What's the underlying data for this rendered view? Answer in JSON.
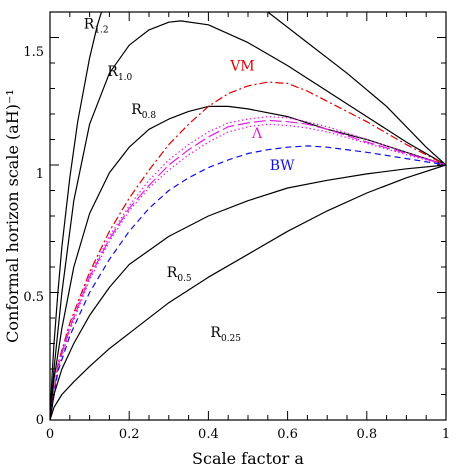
{
  "chart_data": {
    "type": "line",
    "xlabel": "Scale factor a",
    "ylabel": "Conformal horizon scale (aH)⁻¹",
    "xlim": [
      0,
      1
    ],
    "ylim": [
      0,
      1.6
    ],
    "x_ticks": [
      "0",
      "0.2",
      "0.4",
      "0.6",
      "0.8",
      "1"
    ],
    "y_ticks": [
      "0",
      "0.5",
      "1",
      "1.5"
    ],
    "grid": false,
    "series": [
      {
        "name": "R",
        "sub": "1.2",
        "color": "#000000",
        "style": "solid",
        "points": [
          [
            0,
            0
          ],
          [
            0.005,
            0.17
          ],
          [
            0.01,
            0.3
          ],
          [
            0.02,
            0.5
          ],
          [
            0.03,
            0.68
          ],
          [
            0.05,
            0.95
          ],
          [
            0.07,
            1.17
          ],
          [
            0.1,
            1.42
          ],
          [
            0.12,
            1.55
          ],
          [
            0.13,
            1.6
          ]
        ]
      },
      {
        "name": "R",
        "sub": "1.0",
        "color": "#000000",
        "style": "solid",
        "points": [
          [
            0,
            0
          ],
          [
            0.01,
            0.2
          ],
          [
            0.03,
            0.5
          ],
          [
            0.06,
            0.86
          ],
          [
            0.1,
            1.16
          ],
          [
            0.15,
            1.36
          ],
          [
            0.2,
            1.47
          ],
          [
            0.25,
            1.53
          ],
          [
            0.3,
            1.56
          ],
          [
            0.33,
            1.565
          ],
          [
            0.4,
            1.55
          ],
          [
            0.5,
            1.48
          ],
          [
            0.6,
            1.39
          ],
          [
            0.7,
            1.29
          ],
          [
            0.8,
            1.19
          ],
          [
            0.9,
            1.09
          ],
          [
            1.0,
            1.0
          ]
        ]
      },
      {
        "name": "",
        "sub": "",
        "color": "#000000",
        "style": "solid",
        "points": [
          [
            0.55,
            1.6
          ],
          [
            0.65,
            1.48
          ],
          [
            0.75,
            1.36
          ],
          [
            0.85,
            1.23
          ],
          [
            0.95,
            1.07
          ],
          [
            1.0,
            1.0
          ]
        ]
      },
      {
        "name": "R",
        "sub": "0.8",
        "color": "#000000",
        "style": "solid",
        "points": [
          [
            0,
            0
          ],
          [
            0.01,
            0.16
          ],
          [
            0.03,
            0.36
          ],
          [
            0.06,
            0.6
          ],
          [
            0.1,
            0.81
          ],
          [
            0.15,
            0.97
          ],
          [
            0.2,
            1.07
          ],
          [
            0.25,
            1.14
          ],
          [
            0.3,
            1.18
          ],
          [
            0.35,
            1.21
          ],
          [
            0.4,
            1.23
          ],
          [
            0.45,
            1.23
          ],
          [
            0.5,
            1.22
          ],
          [
            0.6,
            1.19
          ],
          [
            0.7,
            1.14
          ],
          [
            0.8,
            1.1
          ],
          [
            0.9,
            1.05
          ],
          [
            1.0,
            1.0
          ]
        ]
      },
      {
        "name": "VM",
        "sub": "",
        "color": "#e00000",
        "style": "dashdot",
        "points": [
          [
            0,
            0
          ],
          [
            0.02,
            0.22
          ],
          [
            0.05,
            0.38
          ],
          [
            0.1,
            0.58
          ],
          [
            0.15,
            0.74
          ],
          [
            0.2,
            0.87
          ],
          [
            0.25,
            0.98
          ],
          [
            0.3,
            1.08
          ],
          [
            0.35,
            1.16
          ],
          [
            0.4,
            1.23
          ],
          [
            0.45,
            1.28
          ],
          [
            0.5,
            1.31
          ],
          [
            0.55,
            1.325
          ],
          [
            0.6,
            1.32
          ],
          [
            0.65,
            1.29
          ],
          [
            0.7,
            1.25
          ],
          [
            0.8,
            1.17
          ],
          [
            0.9,
            1.08
          ],
          [
            1.0,
            1.0
          ]
        ]
      },
      {
        "name": "Λ",
        "sub": "",
        "color": "#e020e0",
        "style": "longdash",
        "points": [
          [
            0,
            0
          ],
          [
            0.02,
            0.21
          ],
          [
            0.05,
            0.36
          ],
          [
            0.1,
            0.56
          ],
          [
            0.15,
            0.71
          ],
          [
            0.2,
            0.83
          ],
          [
            0.25,
            0.92
          ],
          [
            0.3,
            1.0
          ],
          [
            0.35,
            1.06
          ],
          [
            0.4,
            1.11
          ],
          [
            0.45,
            1.15
          ],
          [
            0.5,
            1.165
          ],
          [
            0.55,
            1.175
          ],
          [
            0.6,
            1.17
          ],
          [
            0.65,
            1.16
          ],
          [
            0.7,
            1.14
          ],
          [
            0.8,
            1.09
          ],
          [
            0.9,
            1.045
          ],
          [
            1.0,
            1.0
          ]
        ]
      },
      {
        "name": "",
        "sub": "",
        "color": "#e020e0",
        "style": "dotted",
        "points": [
          [
            0,
            0
          ],
          [
            0.02,
            0.22
          ],
          [
            0.05,
            0.37
          ],
          [
            0.1,
            0.57
          ],
          [
            0.15,
            0.72
          ],
          [
            0.2,
            0.84
          ],
          [
            0.25,
            0.94
          ],
          [
            0.3,
            1.02
          ],
          [
            0.35,
            1.08
          ],
          [
            0.4,
            1.13
          ],
          [
            0.45,
            1.165
          ],
          [
            0.5,
            1.18
          ],
          [
            0.55,
            1.19
          ],
          [
            0.6,
            1.185
          ],
          [
            0.65,
            1.17
          ],
          [
            0.7,
            1.15
          ],
          [
            0.8,
            1.1
          ],
          [
            0.9,
            1.05
          ],
          [
            1.0,
            1.0
          ]
        ]
      },
      {
        "name": "",
        "sub": "",
        "color": "#e020e0",
        "style": "dotted",
        "points": [
          [
            0,
            0
          ],
          [
            0.02,
            0.2
          ],
          [
            0.05,
            0.35
          ],
          [
            0.1,
            0.55
          ],
          [
            0.15,
            0.7
          ],
          [
            0.2,
            0.82
          ],
          [
            0.25,
            0.91
          ],
          [
            0.3,
            0.98
          ],
          [
            0.35,
            1.04
          ],
          [
            0.4,
            1.09
          ],
          [
            0.45,
            1.13
          ],
          [
            0.5,
            1.15
          ],
          [
            0.55,
            1.16
          ],
          [
            0.6,
            1.155
          ],
          [
            0.65,
            1.145
          ],
          [
            0.7,
            1.13
          ],
          [
            0.8,
            1.085
          ],
          [
            0.9,
            1.04
          ],
          [
            1.0,
            1.0
          ]
        ]
      },
      {
        "name": "BW",
        "sub": "",
        "color": "#1010e0",
        "style": "dashed",
        "points": [
          [
            0,
            0
          ],
          [
            0.02,
            0.19
          ],
          [
            0.05,
            0.33
          ],
          [
            0.1,
            0.5
          ],
          [
            0.15,
            0.63
          ],
          [
            0.2,
            0.74
          ],
          [
            0.25,
            0.83
          ],
          [
            0.3,
            0.9
          ],
          [
            0.35,
            0.95
          ],
          [
            0.4,
            0.99
          ],
          [
            0.45,
            1.02
          ],
          [
            0.5,
            1.045
          ],
          [
            0.55,
            1.06
          ],
          [
            0.6,
            1.07
          ],
          [
            0.65,
            1.075
          ],
          [
            0.7,
            1.07
          ],
          [
            0.8,
            1.05
          ],
          [
            0.9,
            1.025
          ],
          [
            1.0,
            1.0
          ]
        ]
      },
      {
        "name": "R",
        "sub": "0.5",
        "color": "#000000",
        "style": "solid",
        "points": [
          [
            0,
            0
          ],
          [
            0.01,
            0.1
          ],
          [
            0.03,
            0.2
          ],
          [
            0.06,
            0.3
          ],
          [
            0.1,
            0.41
          ],
          [
            0.15,
            0.52
          ],
          [
            0.2,
            0.61
          ],
          [
            0.3,
            0.72
          ],
          [
            0.4,
            0.8
          ],
          [
            0.5,
            0.86
          ],
          [
            0.6,
            0.91
          ],
          [
            0.7,
            0.94
          ],
          [
            0.8,
            0.965
          ],
          [
            0.9,
            0.985
          ],
          [
            1.0,
            1.0
          ]
        ]
      },
      {
        "name": "R",
        "sub": "0.25",
        "color": "#000000",
        "style": "solid",
        "points": [
          [
            0,
            0
          ],
          [
            0.01,
            0.05
          ],
          [
            0.03,
            0.1
          ],
          [
            0.06,
            0.15
          ],
          [
            0.1,
            0.21
          ],
          [
            0.15,
            0.28
          ],
          [
            0.2,
            0.34
          ],
          [
            0.3,
            0.46
          ],
          [
            0.4,
            0.56
          ],
          [
            0.5,
            0.65
          ],
          [
            0.6,
            0.74
          ],
          [
            0.7,
            0.82
          ],
          [
            0.8,
            0.89
          ],
          [
            0.9,
            0.95
          ],
          [
            1.0,
            1.0
          ]
        ]
      }
    ],
    "labels": [
      {
        "text": "R",
        "sub": "1.2",
        "x": 0.085,
        "y": 1.535,
        "color": "#000000"
      },
      {
        "text": "R",
        "sub": "1.0",
        "x": 0.145,
        "y": 1.35,
        "color": "#000000"
      },
      {
        "text": "R",
        "sub": "0.8",
        "x": 0.205,
        "y": 1.2,
        "color": "#000000"
      },
      {
        "text": "VM",
        "sub": "",
        "x": 0.455,
        "y": 1.37,
        "color": "#e00000"
      },
      {
        "text": "Λ",
        "sub": "",
        "x": 0.51,
        "y": 1.105,
        "color": "#e020e0"
      },
      {
        "text": "BW",
        "sub": "",
        "x": 0.555,
        "y": 0.98,
        "color": "#1010e0"
      },
      {
        "text": "R",
        "sub": "0.5",
        "x": 0.295,
        "y": 0.56,
        "color": "#000000"
      },
      {
        "text": "R",
        "sub": "0.25",
        "x": 0.405,
        "y": 0.325,
        "color": "#000000"
      }
    ]
  }
}
